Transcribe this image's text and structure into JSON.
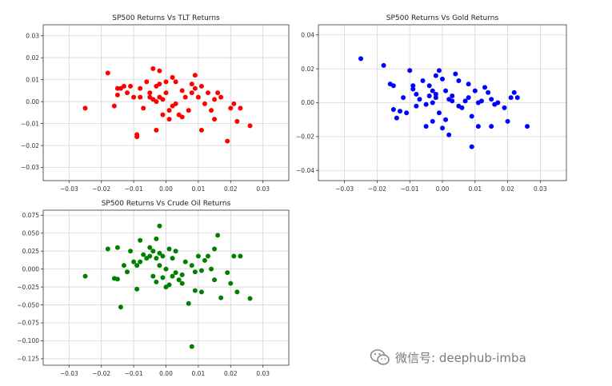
{
  "chart_data": [
    {
      "type": "scatter",
      "title": "SP500 Returns Vs TLT Returns",
      "xlabel": "",
      "ylabel": "",
      "xlim": [
        -0.038,
        0.038
      ],
      "ylim": [
        -0.036,
        0.035
      ],
      "xticks": [
        -0.03,
        -0.02,
        -0.01,
        0.0,
        0.01,
        0.02,
        0.03
      ],
      "xtick_labels": [
        "−0.03",
        "−0.02",
        "−0.01",
        "0.00",
        "0.01",
        "0.02",
        "0.03"
      ],
      "yticks": [
        -0.03,
        -0.02,
        -0.01,
        0.0,
        0.01,
        0.02,
        0.03
      ],
      "ytick_labels": [
        "−0.03",
        "−0.02",
        "−0.01",
        "0.00",
        "0.01",
        "0.02",
        "0.03"
      ],
      "grid": true,
      "color": "#ff0000",
      "x": [
        -0.025,
        -0.018,
        -0.016,
        -0.015,
        -0.015,
        -0.014,
        -0.013,
        -0.012,
        -0.011,
        -0.01,
        -0.009,
        -0.009,
        -0.008,
        -0.008,
        -0.007,
        -0.006,
        -0.005,
        -0.005,
        -0.004,
        -0.004,
        -0.003,
        -0.003,
        -0.003,
        -0.002,
        -0.002,
        -0.002,
        -0.001,
        -0.001,
        0.0,
        0.0,
        0.001,
        0.001,
        0.002,
        0.002,
        0.003,
        0.003,
        0.004,
        0.005,
        0.005,
        0.006,
        0.007,
        0.008,
        0.008,
        0.009,
        0.009,
        0.01,
        0.011,
        0.011,
        0.012,
        0.013,
        0.014,
        0.015,
        0.015,
        0.016,
        0.017,
        0.019,
        0.02,
        0.021,
        0.022,
        0.023,
        0.026
      ],
      "y": [
        -0.003,
        0.013,
        -0.002,
        0.006,
        0.003,
        0.006,
        0.007,
        0.004,
        0.007,
        0.002,
        -0.016,
        -0.015,
        0.006,
        0.002,
        -0.003,
        0.009,
        0.004,
        0.002,
        0.015,
        0.001,
        0.007,
        0.0,
        -0.013,
        0.014,
        0.008,
        0.002,
        0.001,
        -0.006,
        0.009,
        0.004,
        -0.004,
        -0.008,
        0.011,
        -0.002,
        0.009,
        -0.001,
        -0.006,
        -0.007,
        0.005,
        0.002,
        -0.004,
        0.008,
        0.004,
        0.012,
        0.006,
        0.002,
        -0.013,
        0.007,
        -0.001,
        0.004,
        -0.004,
        0.001,
        -0.008,
        0.004,
        0.002,
        -0.018,
        -0.003,
        -0.001,
        -0.009,
        -0.003,
        -0.011
      ]
    },
    {
      "type": "scatter",
      "title": "SP500 Returns Vs Gold Returns",
      "xlabel": "",
      "ylabel": "",
      "xlim": [
        -0.038,
        0.038
      ],
      "ylim": [
        -0.046,
        0.046
      ],
      "xticks": [
        -0.03,
        -0.02,
        -0.01,
        0.0,
        0.01,
        0.02,
        0.03
      ],
      "xtick_labels": [
        "−0.03",
        "−0.02",
        "−0.01",
        "0.00",
        "0.01",
        "0.02",
        "0.03"
      ],
      "yticks": [
        -0.04,
        -0.02,
        0.0,
        0.02,
        0.04
      ],
      "ytick_labels": [
        "−0.04",
        "−0.02",
        "0.00",
        "0.02",
        "0.04"
      ],
      "grid": true,
      "color": "#0000ff",
      "x": [
        -0.025,
        -0.018,
        -0.016,
        -0.015,
        -0.015,
        -0.014,
        -0.013,
        -0.012,
        -0.011,
        -0.01,
        -0.009,
        -0.009,
        -0.008,
        -0.008,
        -0.007,
        -0.006,
        -0.005,
        -0.005,
        -0.004,
        -0.004,
        -0.003,
        -0.003,
        -0.003,
        -0.002,
        -0.002,
        -0.002,
        -0.001,
        -0.001,
        0.0,
        0.0,
        0.001,
        0.001,
        0.002,
        0.002,
        0.003,
        0.003,
        0.004,
        0.005,
        0.005,
        0.006,
        0.007,
        0.008,
        0.008,
        0.009,
        0.009,
        0.01,
        0.011,
        0.011,
        0.012,
        0.013,
        0.014,
        0.015,
        0.015,
        0.016,
        0.017,
        0.019,
        0.02,
        0.021,
        0.022,
        0.023,
        0.026
      ],
      "y": [
        0.026,
        0.022,
        0.011,
        0.01,
        -0.004,
        -0.009,
        -0.005,
        0.003,
        -0.006,
        0.019,
        0.008,
        0.01,
        0.005,
        -0.002,
        0.002,
        0.013,
        -0.001,
        -0.014,
        0.01,
        0.004,
        -0.011,
        0.007,
        0.0,
        0.003,
        0.005,
        0.016,
        -0.006,
        0.019,
        -0.015,
        0.014,
        0.007,
        -0.01,
        0.002,
        -0.019,
        0.004,
        0.001,
        0.017,
        -0.002,
        0.013,
        -0.003,
        0.001,
        0.011,
        0.003,
        -0.008,
        -0.026,
        0.007,
        -0.014,
        0.0,
        0.001,
        0.009,
        0.006,
        0.002,
        -0.014,
        -0.001,
        0.0,
        -0.003,
        -0.011,
        0.003,
        0.006,
        0.003,
        -0.014
      ]
    },
    {
      "type": "scatter",
      "title": "SP500 Returns Vs Crude Oil Returns",
      "xlabel": "",
      "ylabel": "",
      "xlim": [
        -0.038,
        0.038
      ],
      "ylim": [
        -0.134,
        0.082
      ],
      "xticks": [
        -0.03,
        -0.02,
        -0.01,
        0.0,
        0.01,
        0.02,
        0.03
      ],
      "xtick_labels": [
        "−0.03",
        "−0.02",
        "−0.01",
        "0.00",
        "0.01",
        "0.02",
        "0.03"
      ],
      "yticks": [
        -0.125,
        -0.1,
        -0.075,
        -0.05,
        -0.025,
        0.0,
        0.025,
        0.05,
        0.075
      ],
      "ytick_labels": [
        "−0.125",
        "−0.100",
        "−0.075",
        "−0.050",
        "−0.025",
        "0.000",
        "0.025",
        "0.050",
        "0.075"
      ],
      "grid": true,
      "color": "#008000",
      "x": [
        -0.025,
        -0.018,
        -0.016,
        -0.015,
        -0.015,
        -0.014,
        -0.013,
        -0.012,
        -0.011,
        -0.01,
        -0.009,
        -0.009,
        -0.008,
        -0.008,
        -0.007,
        -0.006,
        -0.005,
        -0.005,
        -0.004,
        -0.004,
        -0.003,
        -0.003,
        -0.003,
        -0.002,
        -0.002,
        -0.002,
        -0.001,
        -0.001,
        0.0,
        0.0,
        0.001,
        0.001,
        0.002,
        0.002,
        0.003,
        0.003,
        0.004,
        0.005,
        0.005,
        0.006,
        0.007,
        0.008,
        0.008,
        0.009,
        0.009,
        0.01,
        0.011,
        0.011,
        0.012,
        0.013,
        0.014,
        0.015,
        0.015,
        0.016,
        0.017,
        0.019,
        0.02,
        0.021,
        0.022,
        0.023,
        0.026
      ],
      "y": [
        -0.01,
        0.028,
        -0.013,
        0.03,
        -0.014,
        -0.053,
        0.005,
        -0.004,
        0.025,
        0.01,
        -0.028,
        0.005,
        0.04,
        0.01,
        0.02,
        0.015,
        0.018,
        0.03,
        0.025,
        -0.01,
        0.042,
        0.015,
        -0.018,
        0.06,
        0.022,
        0.005,
        -0.012,
        0.018,
        0.0,
        -0.025,
        0.028,
        -0.022,
        0.015,
        -0.01,
        -0.005,
        0.025,
        -0.015,
        -0.008,
        -0.02,
        0.01,
        -0.048,
        0.005,
        -0.108,
        -0.004,
        -0.03,
        0.018,
        -0.002,
        -0.032,
        0.012,
        0.018,
        0.0,
        0.028,
        -0.015,
        0.047,
        -0.04,
        -0.005,
        -0.02,
        0.018,
        -0.032,
        0.018,
        -0.041
      ]
    }
  ],
  "watermark": {
    "text": "微信号: deephub-imba",
    "icon": "wechat-icon"
  }
}
